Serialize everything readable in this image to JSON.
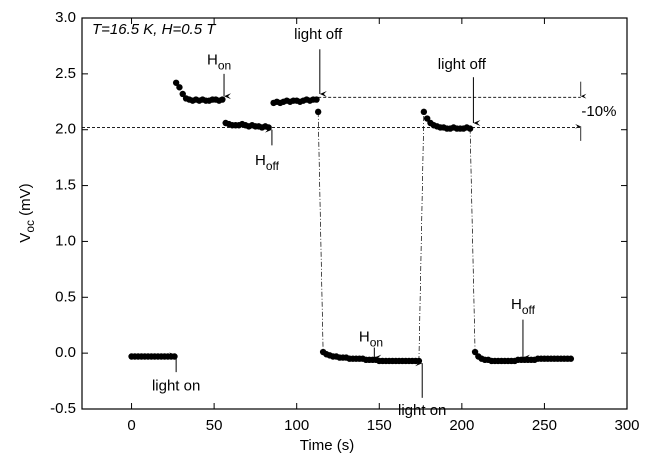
{
  "chart_data": {
    "type": "scatter",
    "title": "T=16.5 K, H=0.5 T",
    "xlabel": "Time (s)",
    "ylabel": {
      "main": "V",
      "sub": "oc",
      "unit": " (mV)"
    },
    "xlim": [
      -30,
      300
    ],
    "xticks": [
      0,
      50,
      100,
      150,
      200,
      250,
      300
    ],
    "ylim": [
      -0.5,
      3.0
    ],
    "yticks": [
      -0.5,
      {
        "value": 0.0,
        "label": "0.0"
      },
      0.5,
      {
        "value": 1.0,
        "label": "1.0"
      },
      1.5,
      {
        "value": 2.0,
        "label": "2.0"
      },
      2.5,
      {
        "value": 3.0,
        "label": "3.0"
      }
    ],
    "color": "#000000",
    "x": [
      0,
      2,
      4,
      6,
      8,
      10,
      12,
      14,
      16,
      18,
      20,
      22,
      24,
      26,
      27,
      29,
      31,
      33,
      35,
      37,
      39,
      41,
      43,
      45,
      47,
      49,
      51,
      53,
      55,
      57,
      59,
      61,
      63,
      65,
      67,
      69,
      71,
      73,
      75,
      77,
      79,
      81,
      83,
      86,
      88,
      90,
      92,
      94,
      96,
      98,
      100,
      102,
      104,
      106,
      108,
      110,
      112,
      113,
      116,
      118,
      120,
      122,
      124,
      126,
      128,
      130,
      132,
      134,
      136,
      138,
      140,
      142,
      144,
      146,
      148,
      150,
      152,
      154,
      156,
      158,
      160,
      162,
      164,
      166,
      168,
      170,
      172,
      174,
      177,
      179,
      181,
      183,
      185,
      187,
      189,
      191,
      193,
      195,
      197,
      199,
      201,
      203,
      205,
      208,
      210,
      212,
      214,
      216,
      218,
      220,
      222,
      224,
      226,
      228,
      230,
      232,
      234,
      236,
      238,
      240,
      242,
      244,
      246,
      248,
      250,
      252,
      254,
      256,
      258,
      260,
      262,
      264,
      266
    ],
    "y": [
      -0.03,
      -0.03,
      -0.03,
      -0.03,
      -0.03,
      -0.03,
      -0.03,
      -0.03,
      -0.03,
      -0.03,
      -0.03,
      -0.03,
      -0.03,
      -0.03,
      2.42,
      2.38,
      2.32,
      2.28,
      2.27,
      2.26,
      2.27,
      2.26,
      2.27,
      2.26,
      2.26,
      2.27,
      2.27,
      2.26,
      2.27,
      2.06,
      2.05,
      2.04,
      2.04,
      2.04,
      2.05,
      2.04,
      2.03,
      2.04,
      2.03,
      2.03,
      2.02,
      2.03,
      2.02,
      2.24,
      2.25,
      2.24,
      2.25,
      2.26,
      2.25,
      2.26,
      2.26,
      2.25,
      2.26,
      2.27,
      2.26,
      2.27,
      2.27,
      2.16,
      0.01,
      -0.01,
      -0.02,
      -0.03,
      -0.03,
      -0.04,
      -0.04,
      -0.04,
      -0.05,
      -0.05,
      -0.05,
      -0.05,
      -0.05,
      -0.06,
      -0.06,
      -0.06,
      -0.06,
      -0.07,
      -0.07,
      -0.07,
      -0.07,
      -0.07,
      -0.07,
      -0.07,
      -0.07,
      -0.07,
      -0.07,
      -0.07,
      -0.07,
      -0.07,
      2.16,
      2.1,
      2.06,
      2.04,
      2.03,
      2.02,
      2.02,
      2.01,
      2.01,
      2.02,
      2.01,
      2.01,
      2.01,
      2.02,
      2.01,
      0.01,
      -0.03,
      -0.05,
      -0.06,
      -0.06,
      -0.07,
      -0.07,
      -0.07,
      -0.07,
      -0.07,
      -0.07,
      -0.07,
      -0.07,
      -0.06,
      -0.06,
      -0.06,
      -0.06,
      -0.06,
      -0.06,
      -0.05,
      -0.05,
      -0.05,
      -0.05,
      -0.05,
      -0.05,
      -0.05,
      -0.05,
      -0.05,
      -0.05,
      -0.05
    ],
    "reference_lines": [
      {
        "y": 2.29,
        "x": [
          113,
          272
        ]
      },
      {
        "y": 2.02,
        "x": [
          -30,
          272
        ]
      }
    ],
    "annotations": [
      {
        "text": "H",
        "sub": "on",
        "x": 53,
        "y": 2.62,
        "arrow": [
          56,
          2.5,
          2.3
        ]
      },
      {
        "text": "H",
        "sub": "off",
        "x": 82,
        "y": 1.72,
        "arrow": [
          85,
          1.86,
          2.0
        ]
      },
      {
        "text": "light off",
        "x": 113,
        "y": 2.85,
        "arrow": [
          114,
          2.72,
          2.32
        ]
      },
      {
        "text": "light off",
        "x": 200,
        "y": 2.58,
        "arrow": [
          207,
          2.47,
          2.06
        ]
      },
      {
        "text": "light on",
        "x": 27,
        "y": -0.3,
        "arrow": [
          27,
          -0.17,
          -0.02
        ]
      },
      {
        "text": "H",
        "sub": "on",
        "x": 145,
        "y": 0.14,
        "arrow": [
          147,
          0.05,
          -0.04
        ]
      },
      {
        "text": "light on",
        "x": 176,
        "y": -0.52,
        "arrow": [
          176,
          -0.4,
          -0.09
        ]
      },
      {
        "text": "H",
        "sub": "off",
        "x": 237,
        "y": 0.43,
        "arrow": [
          237,
          0.3,
          -0.04
        ]
      },
      {
        "text": "-10%",
        "x": 283,
        "y": 2.16
      }
    ],
    "bracket_arrows": [
      {
        "x": 272,
        "from": 2.43,
        "to": 2.3
      },
      {
        "x": 272,
        "from": 1.9,
        "to": 2.03
      }
    ]
  }
}
